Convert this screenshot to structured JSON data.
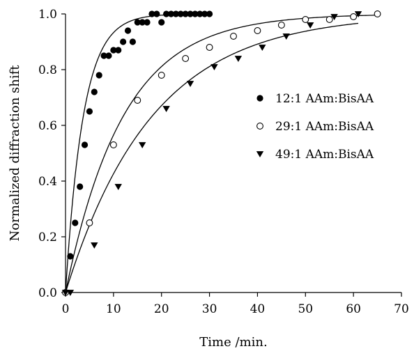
{
  "chart_data": {
    "type": "scatter",
    "title": "",
    "xlabel": "Time /min.",
    "ylabel": "Normalized diffraction shift",
    "xlim": [
      0,
      70
    ],
    "ylim": [
      0,
      1.0
    ],
    "x_ticks": [
      0,
      10,
      20,
      30,
      40,
      50,
      60,
      70
    ],
    "y_ticks": [
      0.0,
      0.2,
      0.4,
      0.6,
      0.8,
      1.0
    ],
    "x_tick_labels": [
      "0",
      "10",
      "20",
      "30",
      "40",
      "50",
      "60",
      "70"
    ],
    "y_tick_labels": [
      "0.0",
      "0.2",
      "0.4",
      "0.6",
      "0.8",
      "1.0"
    ],
    "grid": false,
    "legend_position": "right-middle",
    "series": [
      {
        "name": "12:1 AAm:BisAA",
        "marker": "filled-circle",
        "color": "#000000",
        "fit_time_constant": 3.7,
        "points": [
          {
            "x": 0,
            "y": 0.0
          },
          {
            "x": 1,
            "y": 0.13
          },
          {
            "x": 2,
            "y": 0.25
          },
          {
            "x": 3,
            "y": 0.38
          },
          {
            "x": 4,
            "y": 0.53
          },
          {
            "x": 5,
            "y": 0.65
          },
          {
            "x": 6,
            "y": 0.72
          },
          {
            "x": 7,
            "y": 0.78
          },
          {
            "x": 8,
            "y": 0.85
          },
          {
            "x": 9,
            "y": 0.85
          },
          {
            "x": 10,
            "y": 0.87
          },
          {
            "x": 11,
            "y": 0.87
          },
          {
            "x": 12,
            "y": 0.9
          },
          {
            "x": 13,
            "y": 0.94
          },
          {
            "x": 14,
            "y": 0.9
          },
          {
            "x": 15,
            "y": 0.97
          },
          {
            "x": 16,
            "y": 0.97
          },
          {
            "x": 17,
            "y": 0.97
          },
          {
            "x": 18,
            "y": 1.0
          },
          {
            "x": 19,
            "y": 1.0
          },
          {
            "x": 20,
            "y": 0.97
          },
          {
            "x": 21,
            "y": 1.0
          },
          {
            "x": 22,
            "y": 1.0
          },
          {
            "x": 23,
            "y": 1.0
          },
          {
            "x": 24,
            "y": 1.0
          },
          {
            "x": 25,
            "y": 1.0
          },
          {
            "x": 26,
            "y": 1.0
          },
          {
            "x": 27,
            "y": 1.0
          },
          {
            "x": 28,
            "y": 1.0
          },
          {
            "x": 29,
            "y": 1.0
          },
          {
            "x": 30,
            "y": 1.0
          }
        ]
      },
      {
        "name": "29:1 AAm:BisAA",
        "marker": "open-circle",
        "color": "#000000",
        "fit_time_constant": 12,
        "points": [
          {
            "x": 0,
            "y": 0.0
          },
          {
            "x": 5,
            "y": 0.25
          },
          {
            "x": 10,
            "y": 0.53
          },
          {
            "x": 15,
            "y": 0.69
          },
          {
            "x": 20,
            "y": 0.78
          },
          {
            "x": 25,
            "y": 0.84
          },
          {
            "x": 30,
            "y": 0.88
          },
          {
            "x": 35,
            "y": 0.92
          },
          {
            "x": 40,
            "y": 0.94
          },
          {
            "x": 45,
            "y": 0.96
          },
          {
            "x": 50,
            "y": 0.98
          },
          {
            "x": 55,
            "y": 0.98
          },
          {
            "x": 60,
            "y": 0.99
          },
          {
            "x": 65,
            "y": 1.0
          }
        ]
      },
      {
        "name": "49:1 AAm:BisAA",
        "marker": "filled-triangle-down",
        "color": "#000000",
        "fit_time_constant": 18,
        "points": [
          {
            "x": 0,
            "y": 0.0
          },
          {
            "x": 1,
            "y": 0.0
          },
          {
            "x": 6,
            "y": 0.17
          },
          {
            "x": 11,
            "y": 0.38
          },
          {
            "x": 16,
            "y": 0.53
          },
          {
            "x": 21,
            "y": 0.66
          },
          {
            "x": 26,
            "y": 0.75
          },
          {
            "x": 31,
            "y": 0.81
          },
          {
            "x": 36,
            "y": 0.84
          },
          {
            "x": 41,
            "y": 0.88
          },
          {
            "x": 46,
            "y": 0.92
          },
          {
            "x": 51,
            "y": 0.96
          },
          {
            "x": 56,
            "y": 0.99
          },
          {
            "x": 61,
            "y": 1.0
          }
        ]
      }
    ]
  }
}
